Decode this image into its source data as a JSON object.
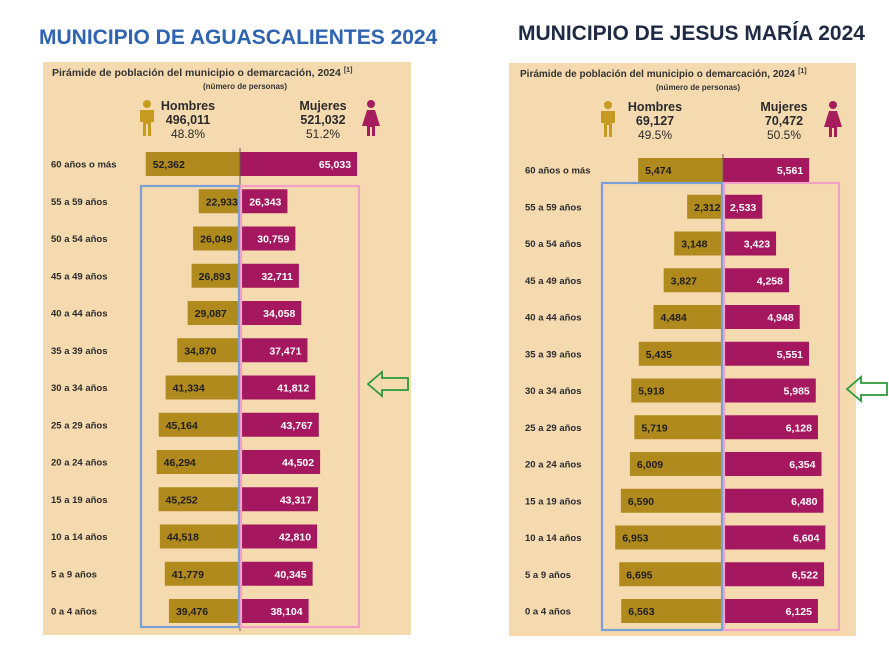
{
  "colors": {
    "panel": "#f5dab0",
    "male": "#b18a1d",
    "female": "#a5175e",
    "male_icon": "#c79a20",
    "female_icon": "#a51d5c",
    "blue_outline": "#7a9fd4",
    "pink_outline": "#f2a0c8",
    "arrow": "#2e9a3a",
    "left_heading": "#2f64b0",
    "right_heading": "#1f2a44"
  },
  "chart_data": [
    {
      "type": "bar",
      "heading": "MUNICIPIO DE AGUASCALIENTES 2024",
      "title": "Pirámide de población del municipio o demarcación, 2024",
      "title_note": "[1]",
      "subtitle": "(número de personas)",
      "men": {
        "label": "Hombres",
        "total": "496,011",
        "pct": "48.8%"
      },
      "women": {
        "label": "Mujeres",
        "total": "521,032",
        "pct": "51.2%"
      },
      "categories": [
        "60 años o más",
        "55 a 59 años",
        "50 a 54 años",
        "45 a 49 años",
        "40 a 44 años",
        "35 a 39 años",
        "30 a 34 años",
        "25 a 29 años",
        "20 a 24 años",
        "15 a 19 años",
        "10 a 14 años",
        "5 a 9 años",
        "0 a 4 años"
      ],
      "series": [
        {
          "name": "Hombres",
          "values": [
            52362,
            22933,
            26049,
            26893,
            29087,
            34870,
            41334,
            45164,
            46294,
            45252,
            44518,
            41779,
            39476
          ]
        },
        {
          "name": "Mujeres",
          "values": [
            65033,
            26343,
            30759,
            32711,
            34058,
            37471,
            41812,
            43767,
            44502,
            43317,
            42810,
            40345,
            38104
          ]
        }
      ],
      "value_labels": {
        "Hombres": [
          "52,362",
          "22,933",
          "26,049",
          "26,893",
          "29,087",
          "34,870",
          "41,334",
          "45,164",
          "46,294",
          "45,252",
          "44,518",
          "41,779",
          "39,476"
        ],
        "Mujeres": [
          "65,033",
          "26,343",
          "30,759",
          "32,711",
          "34,058",
          "37,471",
          "41,812",
          "43,767",
          "44,502",
          "43,317",
          "42,810",
          "40,345",
          "38,104"
        ]
      },
      "highlighted_category": "30 a 34 años"
    },
    {
      "type": "bar",
      "heading": "MUNICIPIO DE JESUS MARÍA 2024",
      "title": "Pirámide de población del municipio o demarcación, 2024",
      "title_note": "[1]",
      "subtitle": "(número de personas)",
      "men": {
        "label": "Hombres",
        "total": "69,127",
        "pct": "49.5%"
      },
      "women": {
        "label": "Mujeres",
        "total": "70,472",
        "pct": "50.5%"
      },
      "categories": [
        "60 años o más",
        "55 a 59 años",
        "50 a 54 años",
        "45 a 49 años",
        "40 a 44 años",
        "35 a 39 años",
        "30 a 34 años",
        "25 a 29 años",
        "20 a 24 años",
        "15 a 19 años",
        "10 a 14 años",
        "5 a 9 años",
        "0 a 4 años"
      ],
      "series": [
        {
          "name": "Hombres",
          "values": [
            5474,
            2312,
            3148,
            3827,
            4484,
            5435,
            5918,
            5719,
            6009,
            6590,
            6953,
            6695,
            6563
          ]
        },
        {
          "name": "Mujeres",
          "values": [
            5561,
            2533,
            3423,
            4258,
            4948,
            5551,
            5985,
            6128,
            6354,
            6480,
            6604,
            6522,
            6125
          ]
        }
      ],
      "value_labels": {
        "Hombres": [
          "5,474",
          "2,312",
          "3,148",
          "3,827",
          "4,484",
          "5,435",
          "5,918",
          "5,719",
          "6,009",
          "6,590",
          "6,953",
          "6,695",
          "6,563"
        ],
        "Mujeres": [
          "5,561",
          "2,533",
          "3,423",
          "4,258",
          "4,948",
          "5,551",
          "5,985",
          "6,128",
          "6,354",
          "6,480",
          "6,604",
          "6,522",
          "6,125"
        ]
      },
      "highlighted_category": "30 a 34 años"
    }
  ]
}
